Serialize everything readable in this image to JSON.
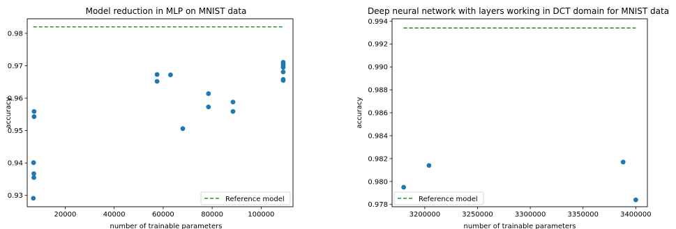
{
  "chart_data": [
    {
      "type": "scatter",
      "title": "Model reduction in MLP on MNIST data",
      "xlabel": "number of trainable parameters",
      "ylabel": "accuracy",
      "xlim": [
        4500,
        113000
      ],
      "ylim": [
        0.9265,
        0.9845
      ],
      "xticks": [
        20000,
        40000,
        60000,
        80000,
        100000
      ],
      "xtick_labels": [
        "20000",
        "40000",
        "60000",
        "80000",
        "100000"
      ],
      "yticks": [
        0.93,
        0.94,
        0.95,
        0.96,
        0.97,
        0.98
      ],
      "ytick_labels": [
        "0.93",
        "0.94",
        "0.95",
        "0.96",
        "0.97",
        "0.98"
      ],
      "points": [
        {
          "x": 7000,
          "y": 0.9291
        },
        {
          "x": 7200,
          "y": 0.9355
        },
        {
          "x": 7200,
          "y": 0.9367
        },
        {
          "x": 7100,
          "y": 0.9401
        },
        {
          "x": 7300,
          "y": 0.9543
        },
        {
          "x": 7300,
          "y": 0.9559
        },
        {
          "x": 57500,
          "y": 0.9652
        },
        {
          "x": 57500,
          "y": 0.9673
        },
        {
          "x": 63000,
          "y": 0.9672
        },
        {
          "x": 68000,
          "y": 0.9506
        },
        {
          "x": 78500,
          "y": 0.9573
        },
        {
          "x": 78500,
          "y": 0.9614
        },
        {
          "x": 88500,
          "y": 0.9559
        },
        {
          "x": 88500,
          "y": 0.9588
        },
        {
          "x": 109000,
          "y": 0.9655
        },
        {
          "x": 109000,
          "y": 0.9658
        },
        {
          "x": 109000,
          "y": 0.9681
        },
        {
          "x": 109000,
          "y": 0.9695
        },
        {
          "x": 109000,
          "y": 0.9702
        },
        {
          "x": 109000,
          "y": 0.9707
        },
        {
          "x": 109000,
          "y": 0.9711
        }
      ],
      "reference": {
        "name": "Reference model",
        "y": 0.982,
        "x_range": [
          7000,
          109000
        ]
      },
      "legend_position": "lower-right",
      "point_color": "#1f77b4",
      "reference_color": "#008000"
    },
    {
      "type": "scatter",
      "title": "Deep neural network with layers working in DCT domain for MNIST data",
      "xlabel": "number of trainable parameters",
      "ylabel": "accuracy",
      "xlim": [
        3169000,
        3411000
      ],
      "ylim": [
        0.9778,
        0.9942
      ],
      "xticks": [
        3200000,
        3250000,
        3300000,
        3350000,
        3400000
      ],
      "xtick_labels": [
        "3200000",
        "3250000",
        "3300000",
        "3350000",
        "3400000"
      ],
      "yticks": [
        0.978,
        0.98,
        0.982,
        0.984,
        0.986,
        0.988,
        0.99,
        0.992,
        0.994
      ],
      "ytick_labels": [
        "0.978",
        "0.980",
        "0.982",
        "0.984",
        "0.986",
        "0.988",
        "0.990",
        "0.992",
        "0.994"
      ],
      "points": [
        {
          "x": 3180000,
          "y": 0.9795
        },
        {
          "x": 3204000,
          "y": 0.9814
        },
        {
          "x": 3388000,
          "y": 0.9817
        },
        {
          "x": 3400000,
          "y": 0.9784
        }
      ],
      "reference": {
        "name": "Reference model",
        "y": 0.9934,
        "x_range": [
          3180000,
          3400000
        ]
      },
      "legend_position": "lower-left",
      "point_color": "#1f77b4",
      "reference_color": "#008000"
    }
  ]
}
